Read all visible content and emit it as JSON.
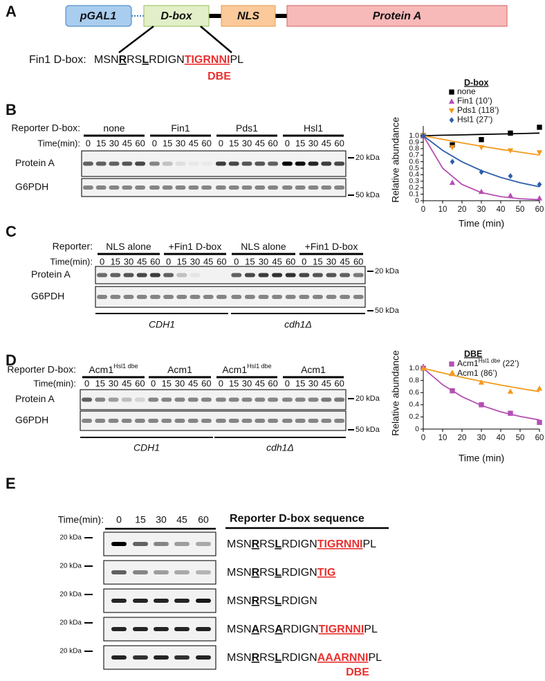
{
  "figure": {
    "A": {
      "label": "A",
      "construct": {
        "promoter": "pGAL1",
        "dbox": "D-box",
        "nls": "NLS",
        "reporter": "Protein A"
      },
      "sequence_label": "Fin1 D-box:",
      "sequence": [
        {
          "text": "MSN",
          "style": "plain"
        },
        {
          "text": "R",
          "style": "key"
        },
        {
          "text": "RS",
          "style": "plain"
        },
        {
          "text": "L",
          "style": "key"
        },
        {
          "text": "RDIGN",
          "style": "plain"
        },
        {
          "text": "TIGRNNI",
          "style": "dbe"
        },
        {
          "text": "PL",
          "style": "plain"
        }
      ],
      "dbe": "DBE"
    },
    "B": {
      "label": "B",
      "header": "Reporter D-box:",
      "groups": [
        {
          "text": "none"
        },
        {
          "text": "Fin1"
        },
        {
          "text": "Pds1"
        },
        {
          "text": "Hsl1"
        }
      ],
      "time_label": "Time(min):",
      "times": [
        "0",
        "15",
        "30",
        "45",
        "60"
      ],
      "rows": [
        "Protein A",
        "G6PDH"
      ],
      "markers": [
        "20 kDa",
        "50 kDa"
      ]
    },
    "C": {
      "label": "C",
      "header": "Reporter:",
      "groups": [
        {
          "text": "NLS alone"
        },
        {
          "text": "+Fin1 D-box"
        },
        {
          "text": "NLS alone"
        },
        {
          "text": "+Fin1 D-box"
        }
      ],
      "time_label": "Time(min):",
      "times": [
        "0",
        "15",
        "30",
        "45",
        "60"
      ],
      "rows": [
        "Protein A",
        "G6PDH"
      ],
      "markers": [
        "20 kDa",
        "50 kDa"
      ],
      "strains": [
        "CDH1",
        "cdh1Δ"
      ]
    },
    "D": {
      "label": "D",
      "header": "Reporter D-box:",
      "groups": [
        {
          "text": "Acm1",
          "sup": "Hsl1 dbe"
        },
        {
          "text": "Acm1"
        },
        {
          "text": "Acm1",
          "sup": "Hsl1 dbe"
        },
        {
          "text": "Acm1"
        }
      ],
      "time_label": "Time(min):",
      "times": [
        "0",
        "15",
        "30",
        "45",
        "60"
      ],
      "rows": [
        "Protein A",
        "G6PDH"
      ],
      "markers": [
        "20 kDa",
        "50 kDa"
      ],
      "strains": [
        "CDH1",
        "cdh1Δ"
      ]
    },
    "E": {
      "label": "E",
      "time_label": "Time(min):",
      "times": [
        "0",
        "15",
        "30",
        "45",
        "60"
      ],
      "marker": "20 kDa",
      "sequence_header": "Reporter D-box sequence",
      "sequences": [
        [
          {
            "text": "MSN",
            "style": "plain"
          },
          {
            "text": "R",
            "style": "key"
          },
          {
            "text": "RS",
            "style": "plain"
          },
          {
            "text": "L",
            "style": "key"
          },
          {
            "text": "RDIGN",
            "style": "plain"
          },
          {
            "text": "TIGRNNI",
            "style": "dbe"
          },
          {
            "text": "PL",
            "style": "plain"
          }
        ],
        [
          {
            "text": "MSN",
            "style": "plain"
          },
          {
            "text": "R",
            "style": "key"
          },
          {
            "text": "RS",
            "style": "plain"
          },
          {
            "text": "L",
            "style": "key"
          },
          {
            "text": "RDIGN",
            "style": "plain"
          },
          {
            "text": "TIG",
            "style": "dbe"
          }
        ],
        [
          {
            "text": "MSN",
            "style": "plain"
          },
          {
            "text": "R",
            "style": "key"
          },
          {
            "text": "RS",
            "style": "plain"
          },
          {
            "text": "L",
            "style": "key"
          },
          {
            "text": "RDIGN",
            "style": "plain"
          }
        ],
        [
          {
            "text": "MSN",
            "style": "plain"
          },
          {
            "text": "A",
            "style": "key"
          },
          {
            "text": "RS",
            "style": "plain"
          },
          {
            "text": "A",
            "style": "key"
          },
          {
            "text": "RDIGN",
            "style": "plain"
          },
          {
            "text": "TIGRNNI",
            "style": "dbe"
          },
          {
            "text": "PL",
            "style": "plain"
          }
        ],
        [
          {
            "text": "MSN",
            "style": "plain"
          },
          {
            "text": "R",
            "style": "key"
          },
          {
            "text": "RS",
            "style": "plain"
          },
          {
            "text": "L",
            "style": "key"
          },
          {
            "text": "RDIGN",
            "style": "plain"
          },
          {
            "text": "AAARNNI",
            "style": "dbe"
          },
          {
            "text": "PL",
            "style": "plain"
          }
        ]
      ],
      "dbe": "DBE"
    }
  },
  "chart_data": [
    {
      "type": "scatter",
      "legend_title": "D-box",
      "xlabel": "Time (min)",
      "ylabel": "Relative abundance",
      "x": [
        0,
        15,
        30,
        45,
        60
      ],
      "fit_x": [
        0,
        10,
        20,
        30,
        40,
        50,
        60
      ],
      "xlim": [
        0,
        60
      ],
      "xticks": [
        0,
        10,
        20,
        30,
        40,
        50,
        60
      ],
      "ylim": [
        0,
        1.15
      ],
      "yticks": [
        0,
        0.1,
        0.2,
        0.3,
        0.4,
        0.5,
        0.6,
        0.7,
        0.8,
        0.9,
        {
          "value": 1,
          "label": "1.0"
        }
      ],
      "series": [
        {
          "name": "none",
          "color": "#000000",
          "marker": "square",
          "values": [
            1.0,
            0.86,
            0.94,
            1.04,
            1.13
          ],
          "fit": [
            1.0,
            1.007,
            1.013,
            1.02,
            1.027,
            1.033,
            1.04
          ]
        },
        {
          "name": "Fin1 (10’)",
          "color": "#b44fb4",
          "marker": "triangle",
          "values": [
            1.0,
            0.28,
            0.14,
            0.08,
            0.04
          ],
          "fit": [
            1.0,
            0.5,
            0.25,
            0.125,
            0.063,
            0.031,
            0.016
          ]
        },
        {
          "name": "Pds1 (118’)",
          "color": "#f39a1c",
          "marker": "triangle-down",
          "values": [
            1.0,
            0.82,
            0.82,
            0.77,
            0.74
          ],
          "fit": [
            1.0,
            0.943,
            0.889,
            0.838,
            0.79,
            0.746,
            0.703
          ]
        },
        {
          "name": "Hsl1 (27’)",
          "color": "#2e5fa8",
          "marker": "diamond",
          "values": [
            1.0,
            0.6,
            0.44,
            0.38,
            0.25
          ],
          "fit": [
            1.0,
            0.774,
            0.598,
            0.463,
            0.358,
            0.277,
            0.214
          ]
        }
      ]
    },
    {
      "type": "scatter",
      "legend_title": "DBE",
      "xlabel": "Time (min)",
      "ylabel": "Relative abundance",
      "x": [
        0,
        15,
        30,
        45,
        60
      ],
      "fit_x": [
        0,
        10,
        20,
        30,
        40,
        50,
        60
      ],
      "xlim": [
        0,
        60
      ],
      "xticks": [
        0,
        10,
        20,
        30,
        40,
        50,
        60
      ],
      "ylim": [
        0,
        1.07
      ],
      "yticks": [
        0,
        0.2,
        0.4,
        0.6,
        0.8,
        {
          "value": 1,
          "label": "1.0"
        }
      ],
      "series": [
        {
          "name": "Acm1",
          "name_sup": "Hsl1 dbe",
          "name_suffix": " (22’)",
          "color": "#b44fb4",
          "marker": "square",
          "values": [
            1.0,
            0.63,
            0.4,
            0.26,
            0.11
          ],
          "fit": [
            1.0,
            0.73,
            0.533,
            0.389,
            0.284,
            0.207,
            0.151
          ]
        },
        {
          "name": "Acm1 (86’)",
          "color": "#f39a1c",
          "marker": "triangle",
          "values": [
            1.0,
            0.93,
            0.77,
            0.62,
            0.67
          ],
          "fit": [
            1.0,
            0.923,
            0.851,
            0.785,
            0.724,
            0.668,
            0.616
          ]
        }
      ]
    }
  ]
}
